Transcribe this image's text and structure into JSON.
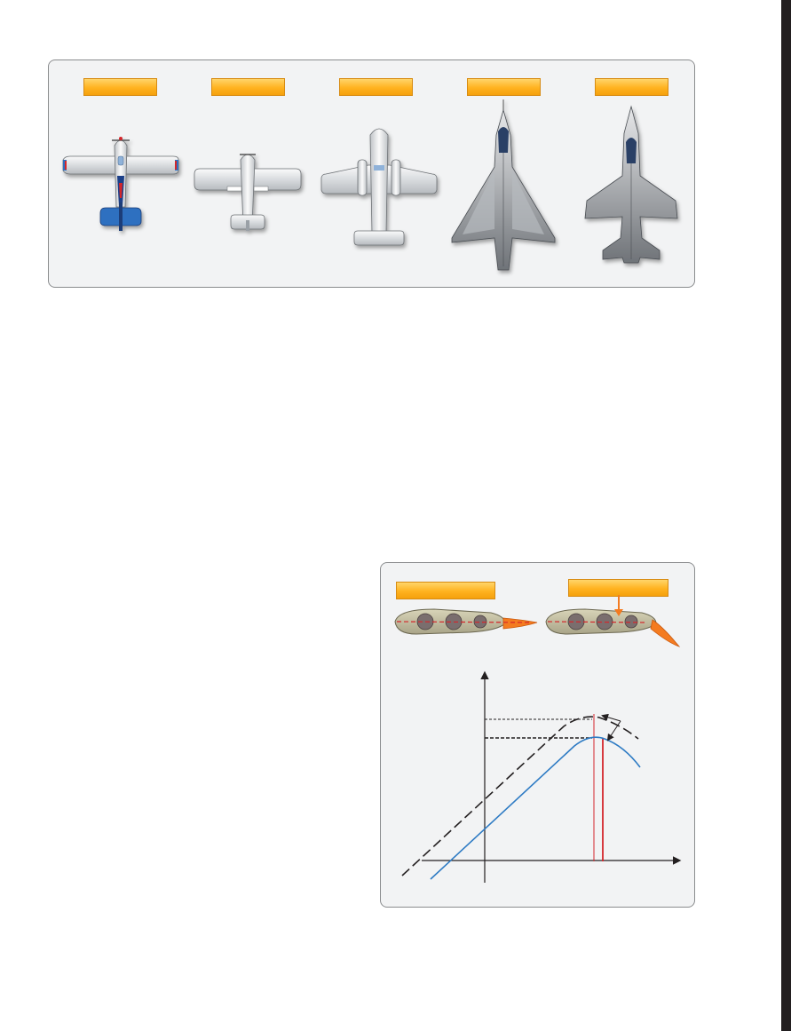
{
  "page": {
    "edge_bar_color": "#231f20"
  },
  "wing_figure": {
    "aircraft": [
      {
        "label": "",
        "icon": "straight-wing-taildragger-icon",
        "accent": "#2f6fc0"
      },
      {
        "label": "",
        "icon": "high-wing-cessna-icon",
        "accent": "#c9cdd1"
      },
      {
        "label": "",
        "icon": "twin-jet-straight-wing-icon",
        "accent": "#c9cdd1"
      },
      {
        "label": "",
        "icon": "delta-wing-jet-icon",
        "accent": "#9aa0a6"
      },
      {
        "label": "",
        "icon": "swept-wing-fighter-icon",
        "accent": "#9aa0a6"
      }
    ],
    "label_color": "#ffb21f"
  },
  "flap_figure": {
    "airfoils": [
      {
        "label": "",
        "icon": "airfoil-flap-retracted-icon"
      },
      {
        "label": "",
        "icon": "airfoil-flap-extended-icon"
      }
    ],
    "chart_data": {
      "type": "line",
      "title": "",
      "xlabel": "",
      "ylabel": "",
      "series": [
        {
          "style": "dashed",
          "color": "#231f20"
        },
        {
          "style": "solid",
          "color": "#2e7bc4"
        }
      ],
      "markers": {
        "stall_lines_color": "#d4262b"
      }
    }
  }
}
